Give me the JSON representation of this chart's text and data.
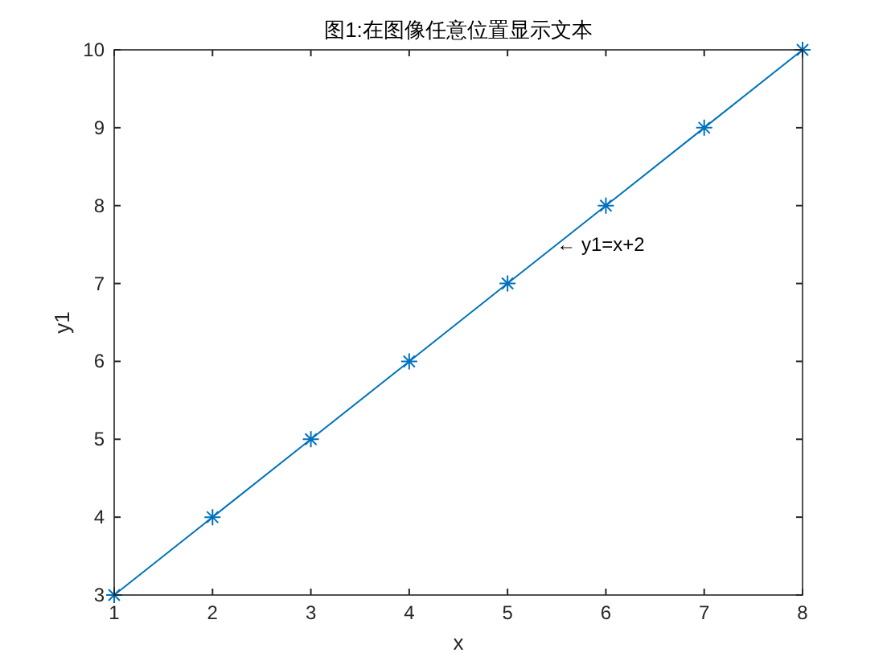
{
  "chart_data": {
    "type": "line",
    "title": "图1:在图像任意位置显示文本",
    "xlabel": "x",
    "ylabel": "y1",
    "x": [
      1,
      2,
      3,
      4,
      5,
      6,
      7,
      8
    ],
    "series": [
      {
        "color": "#0072bd",
        "values": [
          3,
          4,
          5,
          6,
          7,
          8,
          9,
          10
        ]
      }
    ],
    "xlim": [
      1,
      8
    ],
    "xticks": [
      1,
      2,
      3,
      4,
      5,
      6,
      7,
      8
    ],
    "ylim": [
      3,
      10
    ],
    "yticks": [
      3,
      4,
      5,
      6,
      7,
      8,
      9,
      10
    ],
    "marker": "cross",
    "line_style": "solid",
    "grid": false,
    "annotations": [
      {
        "text": "← y1=x+2",
        "x": 5.5,
        "y": 7.5
      }
    ]
  }
}
